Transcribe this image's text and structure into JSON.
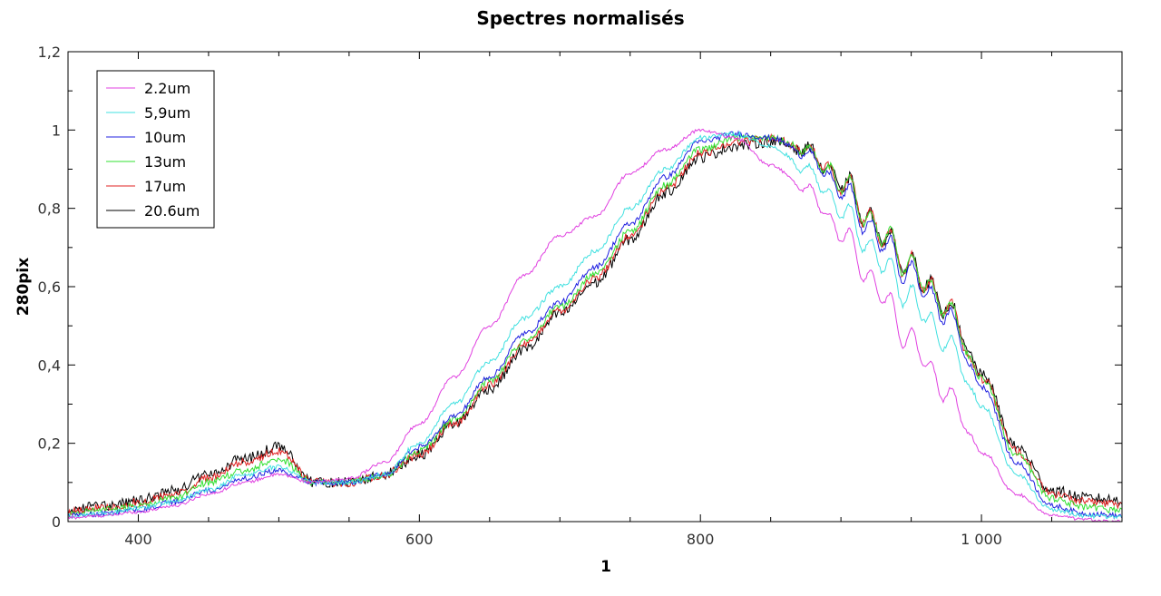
{
  "chart_data": {
    "type": "line",
    "title": "Spectres normalisés",
    "xlabel": "1",
    "ylabel": "280pix",
    "xlim": [
      350,
      1100
    ],
    "ylim": [
      0,
      1.2
    ],
    "x_ticks": [
      {
        "value": 400,
        "label": "400"
      },
      {
        "value": 600,
        "label": "600"
      },
      {
        "value": 800,
        "label": "800"
      },
      {
        "value": 1000,
        "label": "1 000"
      }
    ],
    "y_ticks": [
      {
        "value": 0,
        "label": "0"
      },
      {
        "value": 0.2,
        "label": "0,2"
      },
      {
        "value": 0.4,
        "label": "0,4"
      },
      {
        "value": 0.6,
        "label": "0,6"
      },
      {
        "value": 0.8,
        "label": "0,8"
      },
      {
        "value": 1.0,
        "label": "1"
      },
      {
        "value": 1.2,
        "label": "1,2"
      }
    ],
    "grid": false,
    "legend_position": "top-left",
    "x": [
      350,
      375,
      400,
      425,
      450,
      475,
      500,
      525,
      550,
      575,
      600,
      625,
      650,
      675,
      700,
      725,
      750,
      775,
      800,
      825,
      850,
      875,
      900,
      925,
      950,
      975,
      1000,
      1025,
      1050,
      1075,
      1100
    ],
    "series": [
      {
        "name": "2.2um",
        "color": "#e040e0",
        "noise": 0.004,
        "values": [
          0.01,
          0.015,
          0.025,
          0.04,
          0.07,
          0.1,
          0.12,
          0.1,
          0.11,
          0.15,
          0.25,
          0.37,
          0.5,
          0.63,
          0.73,
          0.78,
          0.89,
          0.95,
          1.0,
          0.98,
          0.91,
          0.85,
          0.74,
          0.6,
          0.46,
          0.33,
          0.18,
          0.07,
          0.015,
          0.005,
          0.0
        ]
      },
      {
        "name": "5,9um",
        "color": "#40e0e0",
        "noise": 0.006,
        "values": [
          0.015,
          0.02,
          0.035,
          0.05,
          0.08,
          0.12,
          0.14,
          0.1,
          0.1,
          0.12,
          0.2,
          0.3,
          0.41,
          0.52,
          0.6,
          0.69,
          0.8,
          0.9,
          0.98,
          0.99,
          0.96,
          0.9,
          0.8,
          0.68,
          0.57,
          0.46,
          0.3,
          0.12,
          0.03,
          0.015,
          0.01
        ]
      },
      {
        "name": "10um",
        "color": "#2020e0",
        "noise": 0.007,
        "values": [
          0.015,
          0.02,
          0.03,
          0.05,
          0.08,
          0.11,
          0.13,
          0.1,
          0.1,
          0.12,
          0.19,
          0.27,
          0.37,
          0.48,
          0.56,
          0.65,
          0.76,
          0.88,
          0.97,
          0.99,
          0.98,
          0.94,
          0.85,
          0.73,
          0.63,
          0.53,
          0.35,
          0.15,
          0.04,
          0.02,
          0.015
        ]
      },
      {
        "name": "13um",
        "color": "#30e030",
        "noise": 0.009,
        "values": [
          0.02,
          0.03,
          0.04,
          0.06,
          0.1,
          0.13,
          0.16,
          0.1,
          0.1,
          0.12,
          0.18,
          0.26,
          0.36,
          0.46,
          0.55,
          0.63,
          0.74,
          0.86,
          0.95,
          0.98,
          0.98,
          0.95,
          0.87,
          0.75,
          0.65,
          0.55,
          0.37,
          0.17,
          0.06,
          0.035,
          0.03
        ]
      },
      {
        "name": "17um",
        "color": "#e02020",
        "noise": 0.011,
        "values": [
          0.025,
          0.035,
          0.05,
          0.07,
          0.11,
          0.15,
          0.18,
          0.1,
          0.1,
          0.12,
          0.17,
          0.25,
          0.35,
          0.45,
          0.54,
          0.62,
          0.73,
          0.85,
          0.94,
          0.97,
          0.98,
          0.95,
          0.87,
          0.75,
          0.65,
          0.55,
          0.37,
          0.18,
          0.07,
          0.05,
          0.045
        ]
      },
      {
        "name": "20.6um",
        "color": "#000000",
        "noise": 0.014,
        "values": [
          0.03,
          0.04,
          0.055,
          0.08,
          0.12,
          0.16,
          0.19,
          0.1,
          0.1,
          0.12,
          0.17,
          0.25,
          0.34,
          0.44,
          0.53,
          0.61,
          0.72,
          0.84,
          0.93,
          0.96,
          0.97,
          0.95,
          0.87,
          0.75,
          0.65,
          0.55,
          0.38,
          0.19,
          0.08,
          0.06,
          0.055
        ]
      }
    ]
  }
}
